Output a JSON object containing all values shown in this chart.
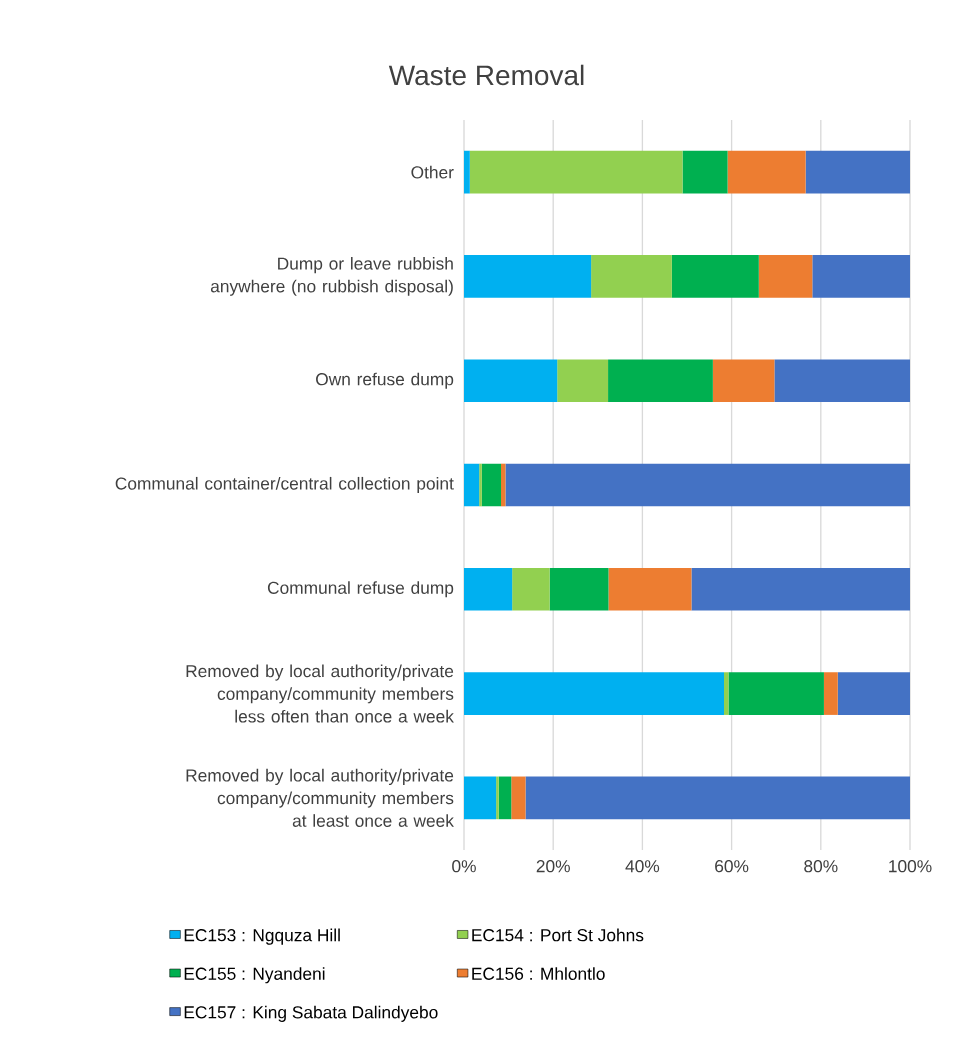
{
  "chart_data": {
    "type": "bar",
    "orientation": "horizontal",
    "stacked": true,
    "title": "Waste Removal",
    "categories": [
      "Other",
      "Dump or leave rubbish anywhere (no rubbish disposal)",
      "Own refuse dump",
      "Communal container/central collection point",
      "Communal refuse dump",
      "Removed by local authority/private company/community members less often than once a week",
      "Removed by local authority/private company/community members at least once a week"
    ],
    "series": [
      {
        "name": "EC153 : Ngquza Hill",
        "color": "#00b0f0",
        "values": [
          1.3,
          28.5,
          20.9,
          3.4,
          10.8,
          58.3,
          7.2
        ]
      },
      {
        "name": "EC154 : Port St Johns",
        "color": "#92d050",
        "values": [
          47.7,
          18.1,
          11.4,
          0.6,
          8.4,
          1.0,
          0.6
        ]
      },
      {
        "name": "EC155 : Nyandeni",
        "color": "#00b050",
        "values": [
          10.1,
          19.5,
          23.5,
          4.3,
          13.2,
          21.4,
          2.8
        ]
      },
      {
        "name": "EC156 : Mhlontlo",
        "color": "#ed7d31",
        "values": [
          17.5,
          12.0,
          13.8,
          1.0,
          18.6,
          3.1,
          3.2
        ]
      },
      {
        "name": "EC157 : King Sabata Dalindyebo",
        "color": "#4472c4",
        "values": [
          23.4,
          21.9,
          30.4,
          90.7,
          49.0,
          16.2,
          86.2
        ]
      }
    ],
    "xlim": [
      0,
      100
    ],
    "xticks": [
      {
        "value": 0,
        "label": "0%"
      },
      {
        "value": 20,
        "label": "20%"
      },
      {
        "value": 40,
        "label": "40%"
      },
      {
        "value": 60,
        "label": "60%"
      },
      {
        "value": 80,
        "label": "80%"
      },
      {
        "value": 100,
        "label": "100%"
      }
    ],
    "grid": "x",
    "legend": "bottom"
  }
}
